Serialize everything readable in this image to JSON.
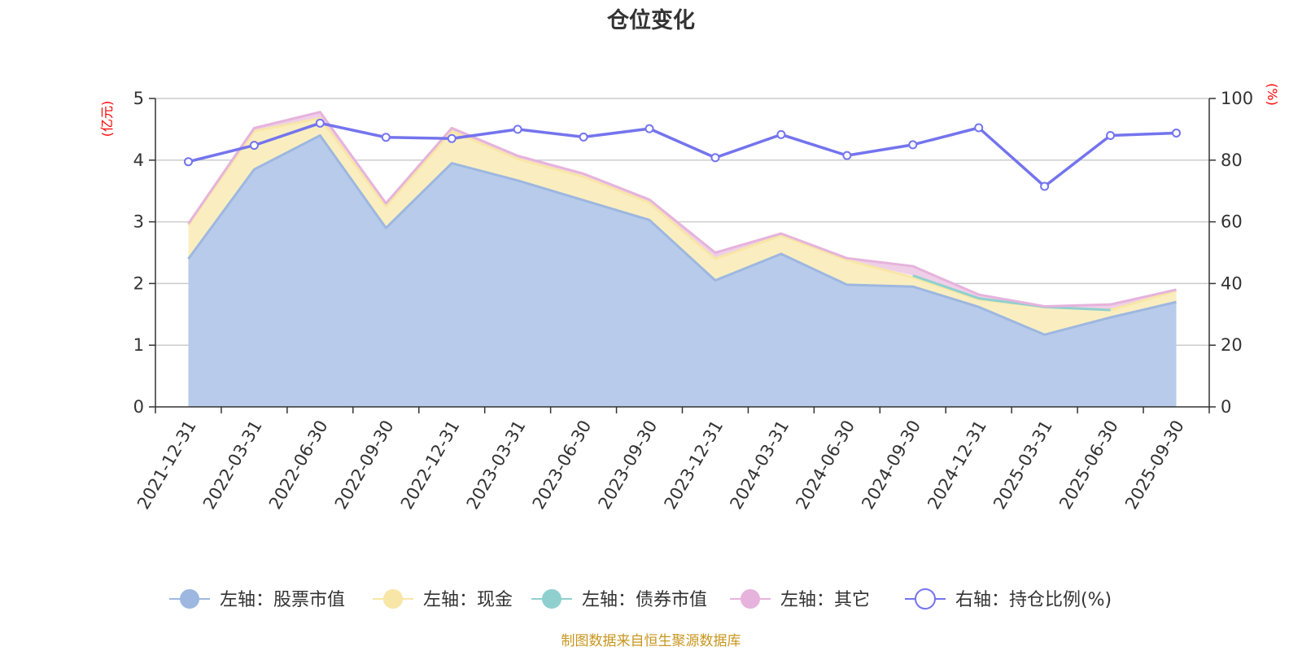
{
  "chart_data": {
    "type": "area",
    "title": "仓位变化",
    "categories": [
      "2021-12-31",
      "2022-03-31",
      "2022-06-30",
      "2022-09-30",
      "2022-12-31",
      "2023-03-31",
      "2023-06-30",
      "2023-09-30",
      "2023-12-31",
      "2024-03-31",
      "2024-06-30",
      "2024-09-30",
      "2024-12-31",
      "2025-03-31",
      "2025-06-30",
      "2025-09-30"
    ],
    "left_axis": {
      "unit": "(亿元)",
      "ylim": [
        0,
        5
      ],
      "ticks": [
        "0",
        "1",
        "2",
        "3",
        "4",
        "5"
      ]
    },
    "right_axis": {
      "unit": "(%)",
      "ylim": [
        0,
        100
      ],
      "ticks": [
        "0",
        "20",
        "40",
        "60",
        "80",
        "100"
      ]
    },
    "series": [
      {
        "name": "左轴：股票市值",
        "axis": "left",
        "stack": true,
        "color": "#9db7e0",
        "fill": "#b8cbea",
        "values": [
          2.4,
          3.85,
          4.4,
          2.9,
          3.95,
          3.67,
          3.35,
          3.03,
          2.05,
          2.48,
          1.98,
          1.95,
          1.62,
          1.17,
          1.45,
          1.7
        ]
      },
      {
        "name": "左轴：现金",
        "axis": "left",
        "stack": true,
        "color": "#f7e6a6",
        "fill": "#faeec0",
        "values": [
          0.55,
          0.62,
          0.28,
          0.35,
          0.52,
          0.35,
          0.38,
          0.28,
          0.35,
          0.3,
          0.4,
          0.15,
          0.12,
          0.45,
          0.12,
          0.18
        ]
      },
      {
        "name": "左轴：债券市值",
        "axis": "left",
        "stack": true,
        "color": "#8fd0cf",
        "fill": "#b7e1df",
        "values": [
          null,
          null,
          null,
          null,
          null,
          null,
          null,
          null,
          null,
          null,
          null,
          0.03,
          0.02,
          0.0,
          0.0,
          null
        ]
      },
      {
        "name": "左轴：其它",
        "axis": "left",
        "stack": true,
        "color": "#e6b3dc",
        "fill": "#efcfe8",
        "values": [
          0.02,
          0.05,
          0.1,
          0.05,
          0.05,
          0.05,
          0.05,
          0.05,
          0.1,
          0.03,
          0.03,
          0.15,
          0.06,
          0.01,
          0.09,
          0.02
        ]
      },
      {
        "name": "右轴：持仓比例(%)",
        "axis": "right",
        "type": "line",
        "color": "#7474ee",
        "values": [
          79.5,
          84.8,
          92.0,
          87.4,
          87.0,
          90.0,
          87.5,
          90.2,
          80.8,
          88.3,
          81.5,
          85.0,
          90.5,
          71.5,
          88.0,
          88.8
        ]
      }
    ],
    "legend_position": "bottom",
    "grid": true,
    "source": "制图数据来自恒生聚源数据库"
  }
}
